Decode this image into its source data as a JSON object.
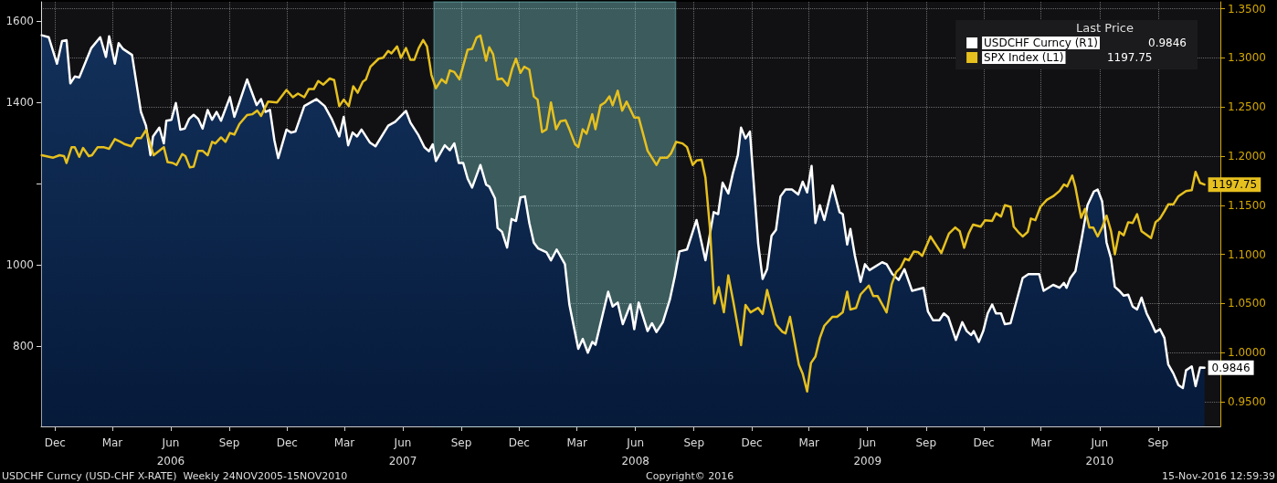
{
  "chart_data": {
    "type": "line",
    "legend": "top right",
    "legend_title": "Last Price",
    "grid": true,
    "marker": "none",
    "line_style": "solid",
    "annotations": [
      "USDCHF Curncy (USD-CHF X-RATE)  Weekly 24NOV2005-15NOV2010",
      "Copyright© 2016",
      "15-Nov-2016 12:59:39"
    ],
    "xlim": [
      "2005-11-23",
      "2010-12-22"
    ],
    "xticks": [
      {
        "value": "2005-12-15",
        "label": "Dec"
      },
      {
        "value": "2006-03-15",
        "label": "Mar"
      },
      {
        "value": "2006-06-15",
        "label": "Jun\n2006"
      },
      {
        "value": "2006-09-15",
        "label": "Sep"
      },
      {
        "value": "2006-12-15",
        "label": "Dec"
      },
      {
        "value": "2007-03-15",
        "label": "Mar"
      },
      {
        "value": "2007-06-15",
        "label": "Jun\n2007"
      },
      {
        "value": "2007-09-15",
        "label": "Sep"
      },
      {
        "value": "2007-12-15",
        "label": "Dec"
      },
      {
        "value": "2008-03-15",
        "label": "Mar"
      },
      {
        "value": "2008-06-15",
        "label": "Jun\n2008"
      },
      {
        "value": "2008-09-15",
        "label": "Sep"
      },
      {
        "value": "2008-12-15",
        "label": "Dec"
      },
      {
        "value": "2009-03-15",
        "label": "Mar"
      },
      {
        "value": "2009-06-15",
        "label": "Jun\n2009"
      },
      {
        "value": "2009-09-15",
        "label": "Sep"
      },
      {
        "value": "2009-12-15",
        "label": "Dec"
      },
      {
        "value": "2010-03-15",
        "label": "Mar"
      },
      {
        "value": "2010-06-15",
        "label": "Jun\n2010"
      },
      {
        "value": "2010-09-15",
        "label": "Sep"
      }
    ],
    "ylim": [
      602,
      1648
    ],
    "yticks": [
      800,
      1000,
      {
        "value": 1200,
        "label": null
      },
      1400,
      1600
    ],
    "y2lim": [
      0.925,
      1.357
    ],
    "y2ticks": [
      {
        "value": 0.95,
        "label": "0.9500"
      },
      {
        "value": 1.0,
        "label": "1.0000"
      },
      {
        "value": 1.05,
        "label": "1.0500"
      },
      {
        "value": 1.1,
        "label": "1.1000"
      },
      {
        "value": 1.15,
        "label": "1.1500"
      },
      {
        "value": 1.2,
        "label": "1.2000"
      },
      {
        "value": 1.25,
        "label": "1.2500"
      },
      {
        "value": 1.3,
        "label": "1.3000"
      },
      {
        "value": 1.35,
        "label": "1.3500"
      }
    ],
    "bands": [
      {
        "axis": "x",
        "from": "2007-08-03",
        "to": "2008-08-17",
        "color": "#8ae6e6"
      }
    ],
    "series": [
      {
        "name": "USDCHF Curncy (R1)",
        "type": "area",
        "axis": "y2",
        "color": "#ffffff",
        "x": [
          "2005-11-24",
          "2005-12-05",
          "2005-12-18",
          "2005-12-26",
          "2006-01-02",
          "2006-01-08",
          "2006-01-15",
          "2006-01-22",
          "2006-02-10",
          "2006-02-24",
          "2006-03-05",
          "2006-03-10",
          "2006-03-19",
          "2006-03-25",
          "2006-04-01",
          "2006-04-15",
          "2006-04-29",
          "2006-05-07",
          "2006-05-14",
          "2006-05-18",
          "2006-05-28",
          "2006-06-04",
          "2006-06-08",
          "2006-06-16",
          "2006-06-23",
          "2006-06-30",
          "2006-07-07",
          "2006-07-14",
          "2006-07-21",
          "2006-07-28",
          "2006-08-04",
          "2006-08-12",
          "2006-08-19",
          "2006-08-26",
          "2006-09-02",
          "2006-09-16",
          "2006-09-23",
          "2006-10-01",
          "2006-10-13",
          "2006-10-28",
          "2006-11-04",
          "2006-11-11",
          "2006-11-18",
          "2006-11-25",
          "2006-12-01",
          "2006-12-14",
          "2006-12-21",
          "2006-12-28",
          "2007-01-11",
          "2007-01-30",
          "2007-02-12",
          "2007-02-23",
          "2007-03-07",
          "2007-03-14",
          "2007-03-21",
          "2007-03-28",
          "2007-04-04",
          "2007-04-11",
          "2007-04-24",
          "2007-05-03",
          "2007-05-23",
          "2007-06-03",
          "2007-06-20",
          "2007-06-27",
          "2007-07-09",
          "2007-07-19",
          "2007-07-26",
          "2007-08-01",
          "2007-08-06",
          "2007-08-20",
          "2007-08-28",
          "2007-09-04",
          "2007-09-11",
          "2007-09-18",
          "2007-09-25",
          "2007-10-02",
          "2007-10-15",
          "2007-10-24",
          "2007-10-29",
          "2007-11-07",
          "2007-11-11",
          "2007-11-18",
          "2007-11-26",
          "2007-12-03",
          "2007-12-10",
          "2007-12-17",
          "2007-12-24",
          "2007-12-31",
          "2008-01-07",
          "2008-01-14",
          "2008-01-27",
          "2008-02-03",
          "2008-02-12",
          "2008-02-25",
          "2008-03-03",
          "2008-03-17",
          "2008-03-24",
          "2008-04-01",
          "2008-04-08",
          "2008-04-13",
          "2008-05-03",
          "2008-05-10",
          "2008-05-18",
          "2008-05-26",
          "2008-06-07",
          "2008-06-13",
          "2008-06-20",
          "2008-07-04",
          "2008-07-11",
          "2008-07-18",
          "2008-07-28",
          "2008-08-08",
          "2008-08-16",
          "2008-08-23",
          "2008-09-04",
          "2008-09-19",
          "2008-10-03",
          "2008-10-16",
          "2008-10-23",
          "2008-10-30",
          "2008-11-08",
          "2008-11-15",
          "2008-11-23",
          "2008-11-28",
          "2008-12-05",
          "2008-12-12",
          "2008-12-25",
          "2009-01-01",
          "2009-01-08",
          "2009-01-15",
          "2009-01-22",
          "2009-01-29",
          "2009-02-06",
          "2009-02-16",
          "2009-02-26",
          "2009-03-05",
          "2009-03-12",
          "2009-03-19",
          "2009-03-25",
          "2009-04-01",
          "2009-04-08",
          "2009-04-21",
          "2009-05-02",
          "2009-05-07",
          "2009-05-14",
          "2009-05-19",
          "2009-05-26",
          "2009-06-04",
          "2009-06-11",
          "2009-06-18",
          "2009-07-08",
          "2009-07-15",
          "2009-07-24",
          "2009-08-03",
          "2009-08-12",
          "2009-08-24",
          "2009-09-11",
          "2009-09-18",
          "2009-09-26",
          "2009-10-06",
          "2009-10-13",
          "2009-10-20",
          "2009-11-01",
          "2009-11-11",
          "2009-11-18",
          "2009-11-25",
          "2009-11-29",
          "2009-12-07",
          "2009-12-14",
          "2009-12-21",
          "2009-12-28",
          "2010-01-03",
          "2010-01-11",
          "2010-01-17",
          "2010-01-26",
          "2010-02-14",
          "2010-02-23",
          "2010-03-12",
          "2010-03-19",
          "2010-04-03",
          "2010-04-13",
          "2010-04-20",
          "2010-04-24",
          "2010-04-30",
          "2010-05-08",
          "2010-05-18",
          "2010-05-27",
          "2010-06-06",
          "2010-06-12",
          "2010-06-19",
          "2010-06-26",
          "2010-07-03",
          "2010-07-09",
          "2010-07-16",
          "2010-07-23",
          "2010-07-30",
          "2010-08-06",
          "2010-08-13",
          "2010-08-20",
          "2010-08-28",
          "2010-09-04",
          "2010-09-11",
          "2010-09-18",
          "2010-09-25",
          "2010-10-01",
          "2010-10-09",
          "2010-10-17",
          "2010-10-24",
          "2010-10-29",
          "2010-11-07",
          "2010-11-13",
          "2010-11-20",
          "2010-11-27"
        ],
        "values": [
          1.323,
          1.321,
          1.294,
          1.317,
          1.318,
          1.274,
          1.281,
          1.28,
          1.31,
          1.321,
          1.301,
          1.322,
          1.294,
          1.315,
          1.309,
          1.303,
          1.245,
          1.231,
          1.201,
          1.22,
          1.229,
          1.213,
          1.236,
          1.237,
          1.254,
          1.227,
          1.228,
          1.238,
          1.242,
          1.238,
          1.228,
          1.247,
          1.237,
          1.245,
          1.236,
          1.26,
          1.24,
          1.255,
          1.278,
          1.252,
          1.258,
          1.245,
          1.247,
          1.216,
          1.198,
          1.227,
          1.224,
          1.225,
          1.251,
          1.258,
          1.251,
          1.238,
          1.22,
          1.24,
          1.211,
          1.224,
          1.22,
          1.227,
          1.214,
          1.21,
          1.231,
          1.235,
          1.246,
          1.234,
          1.222,
          1.209,
          1.205,
          1.212,
          1.195,
          1.211,
          1.206,
          1.213,
          1.193,
          1.193,
          1.177,
          1.168,
          1.191,
          1.171,
          1.169,
          1.157,
          1.127,
          1.123,
          1.107,
          1.136,
          1.134,
          1.158,
          1.159,
          1.132,
          1.112,
          1.106,
          1.102,
          1.094,
          1.105,
          1.09,
          1.049,
          1.004,
          1.014,
          1.0,
          1.011,
          1.008,
          1.062,
          1.047,
          1.051,
          1.029,
          1.049,
          1.024,
          1.051,
          1.022,
          1.03,
          1.021,
          1.031,
          1.054,
          1.078,
          1.103,
          1.105,
          1.135,
          1.094,
          1.143,
          1.141,
          1.173,
          1.162,
          1.182,
          1.201,
          1.229,
          1.218,
          1.225,
          1.111,
          1.075,
          1.085,
          1.119,
          1.125,
          1.159,
          1.166,
          1.166,
          1.161,
          1.174,
          1.163,
          1.19,
          1.132,
          1.15,
          1.135,
          1.17,
          1.143,
          1.141,
          1.11,
          1.126,
          1.099,
          1.072,
          1.09,
          1.084,
          1.092,
          1.09,
          1.08,
          1.074,
          1.085,
          1.063,
          1.066,
          1.042,
          1.033,
          1.033,
          1.04,
          1.036,
          1.013,
          1.031,
          1.022,
          1.018,
          1.022,
          1.011,
          1.022,
          1.04,
          1.049,
          1.04,
          1.04,
          1.029,
          1.03,
          1.076,
          1.08,
          1.08,
          1.063,
          1.069,
          1.066,
          1.071,
          1.066,
          1.076,
          1.083,
          1.117,
          1.15,
          1.164,
          1.166,
          1.154,
          1.112,
          1.096,
          1.067,
          1.063,
          1.058,
          1.059,
          1.047,
          1.044,
          1.056,
          1.04,
          1.031,
          1.021,
          1.024,
          1.015,
          0.988,
          0.979,
          0.967,
          0.964,
          0.982,
          0.986,
          0.966,
          0.985,
          0.9846
        ],
        "value_labels": [
          null,
          null,
          null,
          null,
          null,
          null,
          null,
          null,
          null,
          null,
          null,
          null,
          null,
          null,
          null,
          null,
          null,
          null,
          null,
          null,
          null,
          null,
          null,
          null,
          null,
          null,
          null,
          null,
          null,
          null,
          null,
          null,
          null,
          null,
          null,
          null,
          null,
          null,
          null,
          null,
          null,
          null,
          null,
          null,
          null,
          null,
          null,
          null,
          null,
          null,
          null,
          null,
          null,
          null,
          null,
          null,
          null,
          null,
          null,
          null,
          null,
          null,
          null,
          null,
          null,
          null,
          null,
          null,
          null,
          null,
          null,
          null,
          null,
          null,
          null,
          null,
          null,
          null,
          null,
          null,
          null,
          null,
          null,
          null,
          null,
          null,
          null,
          null,
          null,
          null,
          null,
          null,
          null,
          null,
          null,
          null,
          null,
          null,
          null,
          null,
          null,
          null,
          null,
          null,
          null,
          null,
          null,
          null,
          null,
          null,
          null,
          null,
          null,
          null,
          null,
          null,
          null,
          null,
          null,
          null,
          null,
          null,
          null,
          null,
          null,
          null,
          null,
          null,
          null,
          null,
          null,
          null,
          null,
          null,
          null,
          null,
          null,
          null,
          null,
          null,
          null,
          null,
          null,
          null,
          null,
          null,
          null,
          null,
          null,
          null,
          null,
          null,
          null,
          null,
          null,
          null,
          null,
          null,
          null,
          null,
          null,
          null,
          null,
          null,
          null,
          null,
          null,
          null,
          null,
          null,
          null,
          null,
          null,
          null,
          null,
          null,
          null,
          null,
          null,
          null,
          null,
          null,
          null,
          null,
          null,
          null,
          null,
          null,
          null,
          null,
          null,
          null,
          null,
          null,
          null,
          null,
          null,
          null,
          null,
          null,
          null,
          null,
          null,
          null,
          null,
          null,
          null,
          null,
          null,
          null,
          null,
          null,
          "0.9846"
        ]
      },
      {
        "name": "SPX Index (L1)",
        "color": "#e6c01e",
        "x": [
          "2005-11-24",
          "2005-12-12",
          "2005-12-22",
          "2005-12-29",
          "2006-01-02",
          "2006-01-10",
          "2006-01-15",
          "2006-01-22",
          "2006-01-28",
          "2006-02-06",
          "2006-02-11",
          "2006-02-20",
          "2006-03-01",
          "2006-03-10",
          "2006-03-19",
          "2006-03-28",
          "2006-04-04",
          "2006-04-14",
          "2006-04-22",
          "2006-04-29",
          "2006-05-07",
          "2006-05-19",
          "2006-06-04",
          "2006-06-10",
          "2006-06-18",
          "2006-06-24",
          "2006-07-03",
          "2006-07-08",
          "2006-07-15",
          "2006-07-21",
          "2006-07-28",
          "2006-08-04",
          "2006-08-12",
          "2006-08-19",
          "2006-08-24",
          "2006-09-02",
          "2006-09-09",
          "2006-09-16",
          "2006-09-23",
          "2006-10-01",
          "2006-10-13",
          "2006-10-21",
          "2006-10-29",
          "2006-11-04",
          "2006-11-15",
          "2006-11-29",
          "2006-12-14",
          "2006-12-24",
          "2007-01-01",
          "2007-01-11",
          "2007-01-18",
          "2007-01-26",
          "2007-02-02",
          "2007-02-10",
          "2007-02-20",
          "2007-02-27",
          "2007-03-07",
          "2007-03-14",
          "2007-03-22",
          "2007-03-29",
          "2007-04-05",
          "2007-04-13",
          "2007-04-18",
          "2007-04-25",
          "2007-05-08",
          "2007-05-15",
          "2007-05-23",
          "2007-05-28",
          "2007-06-06",
          "2007-06-12",
          "2007-06-20",
          "2007-06-27",
          "2007-07-03",
          "2007-07-10",
          "2007-07-17",
          "2007-07-23",
          "2007-07-30",
          "2007-08-06",
          "2007-08-15",
          "2007-08-22",
          "2007-08-28",
          "2007-09-04",
          "2007-09-12",
          "2007-09-25",
          "2007-10-02",
          "2007-10-09",
          "2007-10-15",
          "2007-10-24",
          "2007-10-29",
          "2007-11-04",
          "2007-11-11",
          "2007-11-18",
          "2007-11-27",
          "2007-12-04",
          "2007-12-10",
          "2007-12-17",
          "2007-12-23",
          "2007-12-31",
          "2008-01-07",
          "2008-01-13",
          "2008-01-20",
          "2008-01-27",
          "2008-02-03",
          "2008-02-11",
          "2008-02-18",
          "2008-02-26",
          "2008-03-03",
          "2008-03-12",
          "2008-03-17",
          "2008-03-24",
          "2008-03-30",
          "2008-04-08",
          "2008-04-13",
          "2008-04-21",
          "2008-04-28",
          "2008-05-05",
          "2008-05-10",
          "2008-05-18",
          "2008-05-25",
          "2008-06-01",
          "2008-06-13",
          "2008-06-20",
          "2008-07-04",
          "2008-07-18",
          "2008-07-24",
          "2008-08-04",
          "2008-08-10",
          "2008-08-18",
          "2008-08-28",
          "2008-09-04",
          "2008-09-13",
          "2008-09-19",
          "2008-09-27",
          "2008-10-03",
          "2008-10-10",
          "2008-10-17",
          "2008-10-24",
          "2008-11-01",
          "2008-11-08",
          "2008-11-16",
          "2008-11-28",
          "2008-12-05",
          "2008-12-13",
          "2008-12-25",
          "2009-01-01",
          "2009-01-08",
          "2009-01-22",
          "2009-02-01",
          "2009-02-06",
          "2009-02-13",
          "2009-02-20",
          "2009-02-27",
          "2009-03-05",
          "2009-03-12",
          "2009-03-18",
          "2009-03-25",
          "2009-04-01",
          "2009-04-08",
          "2009-04-21",
          "2009-04-28",
          "2009-05-07",
          "2009-05-14",
          "2009-05-19",
          "2009-05-28",
          "2009-06-04",
          "2009-06-17",
          "2009-06-24",
          "2009-07-01",
          "2009-07-15",
          "2009-07-23",
          "2009-07-30",
          "2009-08-06",
          "2009-08-13",
          "2009-08-19",
          "2009-08-27",
          "2009-09-03",
          "2009-09-09",
          "2009-09-22",
          "2009-10-09",
          "2009-10-21",
          "2009-10-31",
          "2009-11-07",
          "2009-11-14",
          "2009-11-21",
          "2009-11-28",
          "2009-12-10",
          "2009-12-17",
          "2009-12-28",
          "2010-01-03",
          "2010-01-11",
          "2010-01-17",
          "2010-01-26",
          "2010-01-31",
          "2010-02-07",
          "2010-02-14",
          "2010-02-22",
          "2010-02-27",
          "2010-03-06",
          "2010-03-14",
          "2010-03-24",
          "2010-04-03",
          "2010-04-13",
          "2010-04-20",
          "2010-04-25",
          "2010-05-03",
          "2010-05-08",
          "2010-05-17",
          "2010-05-23",
          "2010-05-30",
          "2010-06-05",
          "2010-06-12",
          "2010-06-19",
          "2010-06-26",
          "2010-07-03",
          "2010-07-09",
          "2010-07-16",
          "2010-07-23",
          "2010-07-30",
          "2010-08-06",
          "2010-08-13",
          "2010-08-20",
          "2010-09-04",
          "2010-09-11",
          "2010-09-18",
          "2010-09-25",
          "2010-10-01",
          "2010-10-09",
          "2010-10-17",
          "2010-10-29",
          "2010-11-07",
          "2010-11-13",
          "2010-11-20",
          "2010-11-27"
        ],
        "values": [
          1270,
          1264,
          1270,
          1268,
          1251,
          1290,
          1290,
          1266,
          1288,
          1268,
          1270,
          1290,
          1290,
          1286,
          1310,
          1303,
          1297,
          1292,
          1312,
          1312,
          1332,
          1270,
          1290,
          1253,
          1251,
          1246,
          1273,
          1268,
          1240,
          1242,
          1281,
          1281,
          1270,
          1303,
          1299,
          1314,
          1303,
          1325,
          1321,
          1347,
          1369,
          1371,
          1380,
          1367,
          1402,
          1400,
          1431,
          1413,
          1422,
          1413,
          1433,
          1433,
          1453,
          1444,
          1459,
          1455,
          1391,
          1407,
          1391,
          1440,
          1424,
          1451,
          1457,
          1488,
          1508,
          1510,
          1527,
          1521,
          1538,
          1510,
          1534,
          1505,
          1505,
          1534,
          1554,
          1538,
          1468,
          1435,
          1457,
          1448,
          1479,
          1475,
          1457,
          1530,
          1532,
          1560,
          1565,
          1503,
          1536,
          1519,
          1457,
          1459,
          1442,
          1483,
          1508,
          1473,
          1488,
          1481,
          1415,
          1407,
          1327,
          1334,
          1400,
          1334,
          1354,
          1356,
          1334,
          1297,
          1290,
          1334,
          1323,
          1371,
          1334,
          1393,
          1400,
          1415,
          1393,
          1429,
          1380,
          1402,
          1363,
          1363,
          1281,
          1246,
          1264,
          1264,
          1275,
          1303,
          1299,
          1290,
          1246,
          1257,
          1259,
          1215,
          1092,
          905,
          945,
          883,
          974,
          908,
          802,
          901,
          883,
          894,
          879,
          938,
          853,
          835,
          831,
          872,
          813,
          754,
          732,
          688,
          758,
          774,
          820,
          850,
          872,
          872,
          883,
          934,
          890,
          894,
          927,
          949,
          923,
          923,
          883,
          952,
          982,
          993,
          1015,
          1011,
          1033,
          1031,
          1022,
          1070,
          1029,
          1077,
          1092,
          1083,
          1042,
          1077,
          1099,
          1094,
          1110,
          1108,
          1127,
          1119,
          1147,
          1143,
          1094,
          1081,
          1070,
          1081,
          1114,
          1110,
          1143,
          1160,
          1169,
          1182,
          1198,
          1193,
          1220,
          1191,
          1116,
          1138,
          1092,
          1092,
          1070,
          1092,
          1121,
          1083,
          1026,
          1081,
          1073,
          1105,
          1103,
          1125,
          1083,
          1066,
          1105,
          1114,
          1132,
          1149,
          1149,
          1169,
          1182,
          1184,
          1229,
          1202,
          1197.75
        ],
        "value_labels": [
          null,
          null,
          null,
          null,
          null,
          null,
          null,
          null,
          null,
          null,
          null,
          null,
          null,
          null,
          null,
          null,
          null,
          null,
          null,
          null,
          null,
          null,
          null,
          null,
          null,
          null,
          null,
          null,
          null,
          null,
          null,
          null,
          null,
          null,
          null,
          null,
          null,
          null,
          null,
          null,
          null,
          null,
          null,
          null,
          null,
          null,
          null,
          null,
          null,
          null,
          null,
          null,
          null,
          null,
          null,
          null,
          null,
          null,
          null,
          null,
          null,
          null,
          null,
          null,
          null,
          null,
          null,
          null,
          null,
          null,
          null,
          null,
          null,
          null,
          null,
          null,
          null,
          null,
          null,
          null,
          null,
          null,
          null,
          null,
          null,
          null,
          null,
          null,
          null,
          null,
          null,
          null,
          null,
          null,
          null,
          null,
          null,
          null,
          null,
          null,
          null,
          null,
          null,
          null,
          null,
          null,
          null,
          null,
          null,
          null,
          null,
          null,
          null,
          null,
          null,
          null,
          null,
          null,
          null,
          null,
          null,
          null,
          null,
          null,
          null,
          null,
          null,
          null,
          null,
          null,
          null,
          null,
          null,
          null,
          null,
          null,
          null,
          null,
          null,
          null,
          null,
          null,
          null,
          null,
          null,
          null,
          null,
          null,
          null,
          null,
          null,
          null,
          null,
          null,
          null,
          null,
          null,
          null,
          null,
          null,
          null,
          null,
          null,
          null,
          null,
          null,
          null,
          null,
          null,
          null,
          null,
          null,
          null,
          null,
          null,
          null,
          null,
          null,
          null,
          null,
          null,
          null,
          null,
          null,
          null,
          null,
          null,
          null,
          null,
          null,
          null,
          null,
          null,
          null,
          null,
          null,
          null,
          null,
          null,
          null,
          null,
          null,
          null,
          null,
          null,
          null,
          null,
          null,
          null,
          null,
          null,
          null,
          null,
          null,
          null,
          null,
          null,
          null,
          null,
          null,
          null,
          null,
          null,
          null,
          null,
          null,
          null,
          null,
          null,
          null,
          null,
          null,
          "1197.75"
        ]
      }
    ]
  }
}
